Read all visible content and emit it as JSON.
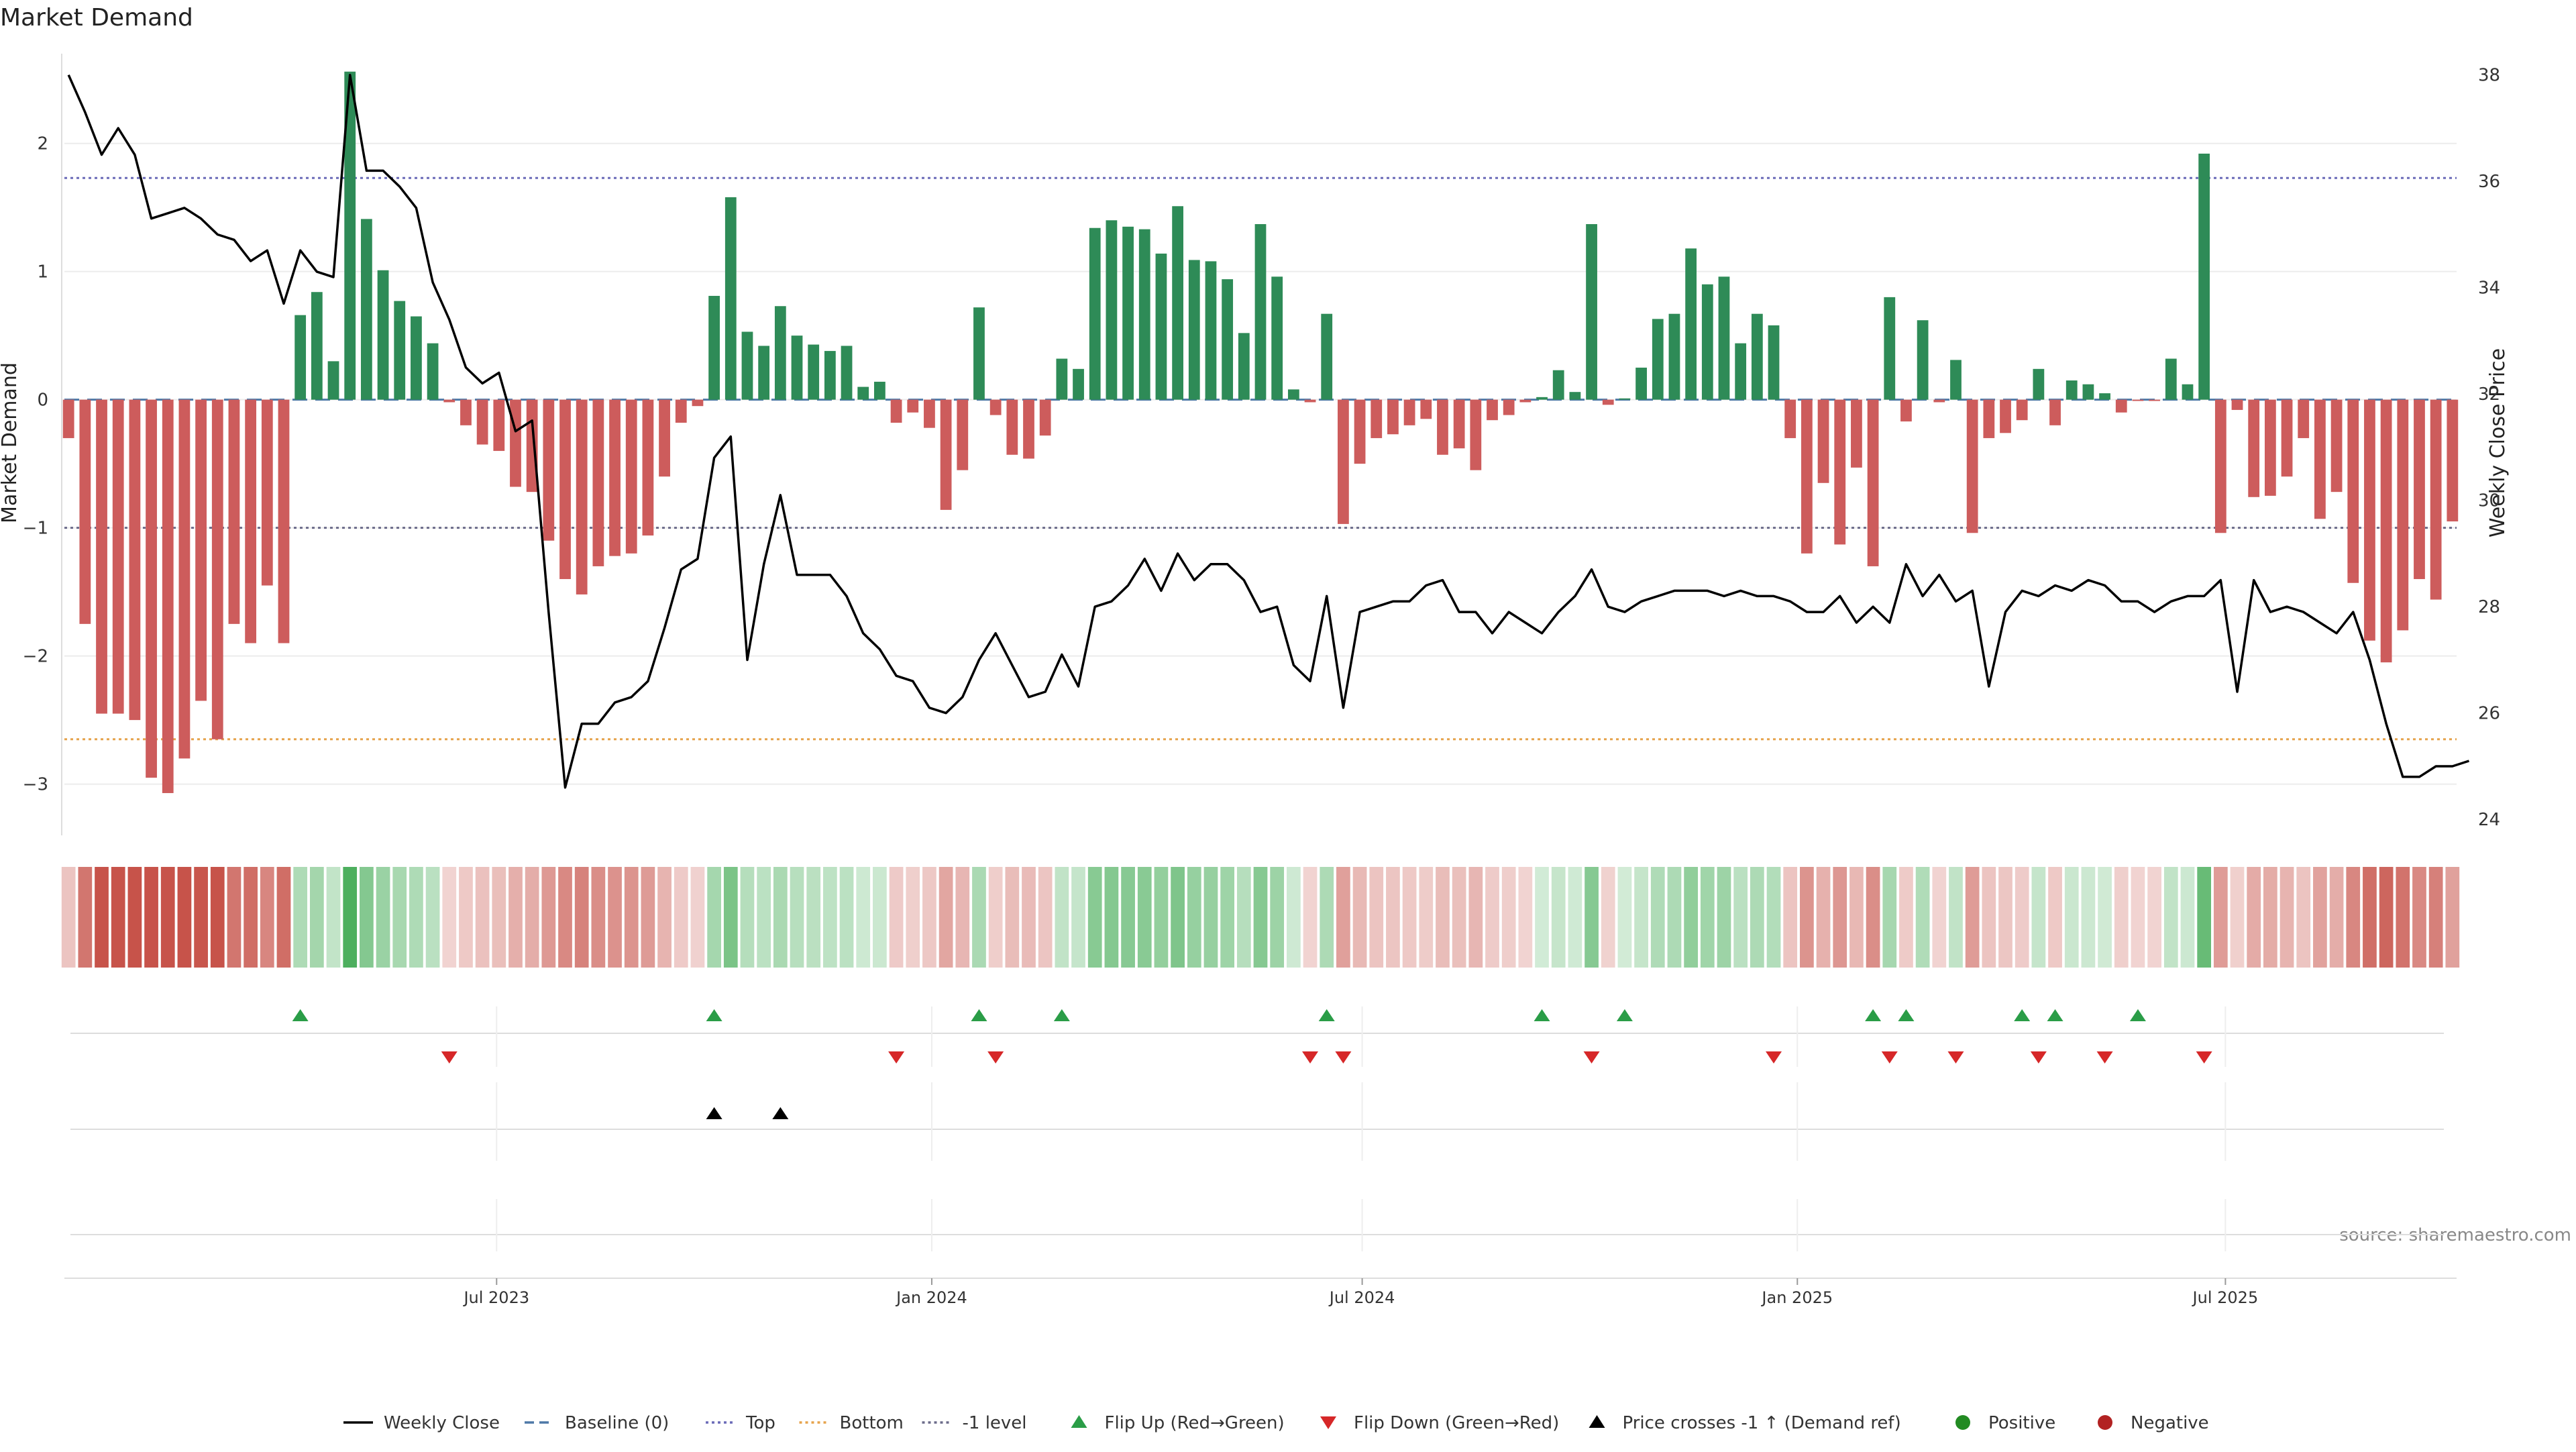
{
  "chart_data": {
    "type": "bar",
    "title": "Market Demand",
    "ylabel_left": "Market Demand",
    "ylabel_right": "Weekly Close Price",
    "source": "source: sharemaestro.com",
    "x_start": "2023-01-01",
    "week_days": 7,
    "y_left_lim": [
      -3.4,
      2.7
    ],
    "y_left_ticks": [
      -3,
      -2,
      -1,
      0,
      1,
      2
    ],
    "y_right_lim": [
      23.7,
      38.4
    ],
    "y_right_ticks": [
      24,
      26,
      28,
      30,
      32,
      34,
      36,
      38
    ],
    "x_ticks": [
      {
        "label": "Jul 2023",
        "date": "2023-07-01"
      },
      {
        "label": "Jan 2024",
        "date": "2024-01-01"
      },
      {
        "label": "Jul 2024",
        "date": "2024-07-01"
      },
      {
        "label": "Jan 2025",
        "date": "2025-01-01"
      },
      {
        "label": "Jul 2025",
        "date": "2025-07-01"
      }
    ],
    "reference_lines": {
      "top": 1.73,
      "bottom": -2.65,
      "minus_one": -1.0,
      "baseline": 0
    },
    "demand": [
      -0.3,
      -1.75,
      -2.45,
      -2.45,
      -2.5,
      -2.95,
      -3.07,
      -2.8,
      -2.35,
      -2.65,
      -1.75,
      -1.9,
      -1.45,
      -1.9,
      0.66,
      0.84,
      0.3,
      2.56,
      1.41,
      1.01,
      0.77,
      0.65,
      0.44,
      -0.02,
      -0.2,
      -0.35,
      -0.4,
      -0.68,
      -0.72,
      -1.1,
      -1.4,
      -1.52,
      -1.3,
      -1.22,
      -1.2,
      -1.06,
      -0.6,
      -0.18,
      -0.05,
      0.81,
      1.58,
      0.53,
      0.42,
      0.73,
      0.5,
      0.43,
      0.38,
      0.42,
      0.1,
      0.14,
      -0.18,
      -0.1,
      -0.22,
      -0.86,
      -0.55,
      0.72,
      -0.12,
      -0.43,
      -0.46,
      -0.28,
      0.32,
      0.24,
      1.34,
      1.4,
      1.35,
      1.33,
      1.14,
      1.51,
      1.09,
      1.08,
      0.94,
      0.52,
      1.37,
      0.96,
      0.08,
      -0.02,
      0.67,
      -0.97,
      -0.5,
      -0.3,
      -0.27,
      -0.2,
      -0.15,
      -0.43,
      -0.38,
      -0.55,
      -0.16,
      -0.12,
      -0.02,
      0.02,
      0.23,
      0.06,
      1.37,
      -0.04,
      0.01,
      0.25,
      0.63,
      0.67,
      1.18,
      0.9,
      0.96,
      0.44,
      0.67,
      0.58,
      -0.3,
      -1.2,
      -0.65,
      -1.13,
      -0.53,
      -1.3,
      0.8,
      -0.17,
      0.62,
      -0.02,
      0.31,
      -1.04,
      -0.3,
      -0.26,
      -0.16,
      0.24,
      -0.2,
      0.15,
      0.12,
      0.05,
      -0.1,
      -0.01,
      -0.01,
      0.32,
      0.12,
      1.92,
      -1.04,
      -0.08,
      -0.76,
      -0.75,
      -0.6,
      -0.3,
      -0.93,
      -0.72,
      -1.43,
      -1.88,
      -2.05,
      -1.8,
      -1.4,
      -1.56,
      -0.95
    ],
    "price": [
      38,
      37.3,
      36.5,
      37,
      36.5,
      35.3,
      35.4,
      35.5,
      35.3,
      35,
      34.9,
      34.5,
      34.7,
      33.7,
      34.7,
      34.3,
      34.2,
      38,
      36.2,
      36.2,
      35.9,
      35.5,
      34.1,
      33.4,
      32.5,
      32.2,
      32.4,
      31.3,
      31.5,
      27.9,
      24.6,
      25.8,
      25.8,
      26.2,
      26.3,
      26.6,
      27.6,
      28.7,
      28.9,
      30.8,
      31.2,
      27,
      28.8,
      30.1,
      28.6,
      28.6,
      28.6,
      28.2,
      27.5,
      27.2,
      26.7,
      26.6,
      26.1,
      26,
      26.3,
      27,
      27.5,
      26.9,
      26.3,
      26.4,
      27.1,
      26.5,
      28,
      28.1,
      28.4,
      28.9,
      28.3,
      29,
      28.5,
      28.8,
      28.8,
      28.5,
      27.9,
      28,
      26.9,
      26.6,
      28.2,
      26.1,
      27.9,
      28,
      28.1,
      28.1,
      28.4,
      28.5,
      27.9,
      27.9,
      27.5,
      27.9,
      27.7,
      27.5,
      27.9,
      28.2,
      28.7,
      28,
      27.9,
      28.1,
      28.2,
      28.3,
      28.3,
      28.3,
      28.2,
      28.3,
      28.2,
      28.2,
      28.1,
      27.9,
      27.9,
      28.2,
      27.7,
      28,
      27.7,
      28.8,
      28.2,
      28.6,
      28.1,
      28.3,
      26.5,
      27.9,
      28.3,
      28.2,
      28.4,
      28.3,
      28.5,
      28.4,
      28.1,
      28.1,
      27.9,
      28.1,
      28.2,
      28.2,
      28.5,
      26.4,
      28.5,
      27.9,
      28,
      27.9,
      27.7,
      27.5,
      27.9,
      27,
      25.8,
      24.8,
      24.8,
      25,
      25,
      25.1
    ],
    "flip_up_weeks": [
      14,
      39,
      55,
      60,
      76,
      89,
      94,
      109,
      111,
      118,
      120,
      125
    ],
    "flip_down_weeks": [
      23,
      50,
      56,
      75,
      77,
      92,
      103,
      110,
      114,
      119,
      123,
      129
    ],
    "price_cross_weeks": [
      39,
      43
    ],
    "demand_strip_colors": {
      "positive_base": "#4daf5e",
      "negative_base": "#c7534a"
    },
    "legend": [
      {
        "label": "Weekly Close",
        "kind": "line",
        "color": "#000000"
      },
      {
        "label": "Baseline (0)",
        "kind": "dash",
        "color": "#4e79a7"
      },
      {
        "label": "Top",
        "kind": "dot",
        "color": "#6b6bb8"
      },
      {
        "label": "Bottom",
        "kind": "dot",
        "color": "#e6a34c"
      },
      {
        "label": "-1 level",
        "kind": "dot",
        "color": "#6b6b8a"
      },
      {
        "label": "Flip Up (Red→Green)",
        "kind": "tri-up",
        "color": "#2a9d47"
      },
      {
        "label": "Flip Down (Green→Red)",
        "kind": "tri-down",
        "color": "#d62728"
      },
      {
        "label": "Price crosses -1 ↑ (Demand ref)",
        "kind": "tri-up",
        "color": "#000000"
      },
      {
        "label": "Positive",
        "kind": "circle",
        "color": "#228b22"
      },
      {
        "label": "Negative",
        "kind": "circle",
        "color": "#b22222"
      }
    ],
    "colors": {
      "positive_bar": "#2e8b57",
      "negative_bar": "#cd5c5c",
      "price_line": "#000000"
    }
  }
}
